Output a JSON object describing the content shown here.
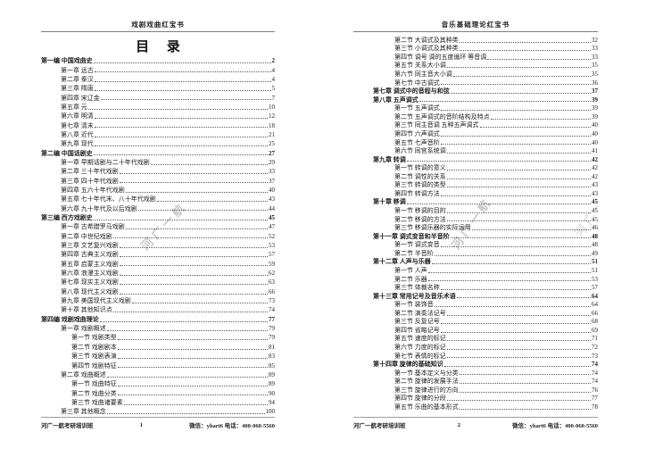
{
  "watermark": {
    "text": "河广一航"
  },
  "colors": {
    "text": "#1c1c1c",
    "rule": "#7d7d7d",
    "watermark": "#9a9a9a",
    "background": "#ffffff"
  },
  "pages": [
    {
      "header_title": "戏剧戏曲红宝书",
      "toc_title": "目 录",
      "footer": {
        "left": "河广一航考研培训班",
        "page_number": "1",
        "right": "微信：yhart6 电话：400-060-5560"
      },
      "toc": [
        {
          "lv": 0,
          "t": "第一编 中国戏曲史",
          "p": "2"
        },
        {
          "lv": 1,
          "t": "第一章 远古",
          "p": "4"
        },
        {
          "lv": 1,
          "t": "第二章 秦汉",
          "p": "4"
        },
        {
          "lv": 1,
          "t": "第三章 隋唐",
          "p": "5"
        },
        {
          "lv": 1,
          "t": "第四章 宋辽金",
          "p": "7"
        },
        {
          "lv": 1,
          "t": "第五章 元",
          "p": "10"
        },
        {
          "lv": 1,
          "t": "第六章 明清",
          "p": "12"
        },
        {
          "lv": 1,
          "t": "第七章 清末",
          "p": "18"
        },
        {
          "lv": 1,
          "t": "第八章 近代",
          "p": "21"
        },
        {
          "lv": 1,
          "t": "第九章 现代",
          "p": "25"
        },
        {
          "lv": 0,
          "t": "第二编 中国话剧史",
          "p": "27"
        },
        {
          "lv": 1,
          "t": "第一章 早期话剧与二十年代戏剧",
          "p": "29"
        },
        {
          "lv": 1,
          "t": "第二章 三十年代戏剧",
          "p": "33"
        },
        {
          "lv": 1,
          "t": "第三章 四十年代戏剧",
          "p": "37"
        },
        {
          "lv": 1,
          "t": "第四章 五六十年代戏剧",
          "p": "40"
        },
        {
          "lv": 1,
          "t": "第五章 七十年代末、八十年代戏剧",
          "p": "43"
        },
        {
          "lv": 1,
          "t": "第六章 九十年代及以后戏剧",
          "p": "44"
        },
        {
          "lv": 0,
          "t": "第三编 西方戏剧史",
          "p": "45"
        },
        {
          "lv": 1,
          "t": "第一章 古希腊罗马戏剧",
          "p": "47"
        },
        {
          "lv": 1,
          "t": "第二章 中世纪戏剧",
          "p": "52"
        },
        {
          "lv": 1,
          "t": "第三章 文艺复兴戏剧",
          "p": "53"
        },
        {
          "lv": 1,
          "t": "第四章 古典主义戏剧",
          "p": "57"
        },
        {
          "lv": 1,
          "t": "第五章 启蒙主义戏剧",
          "p": "59"
        },
        {
          "lv": 1,
          "t": "第六章 浪漫主义戏剧",
          "p": "62"
        },
        {
          "lv": 1,
          "t": "第七章 现实主义戏剧",
          "p": "63"
        },
        {
          "lv": 1,
          "t": "第八章 现代主义戏剧",
          "p": "66"
        },
        {
          "lv": 1,
          "t": "第九章 美国现代主义戏剧",
          "p": "73"
        },
        {
          "lv": 1,
          "t": "第十章 其他知识点",
          "p": "74"
        },
        {
          "lv": 0,
          "t": "第四编 戏剧戏曲理论",
          "p": "77"
        },
        {
          "lv": 1,
          "t": "第一章 戏剧概述",
          "p": "79"
        },
        {
          "lv": 2,
          "t": "第一节 戏剧类型",
          "p": "79"
        },
        {
          "lv": 2,
          "t": "第二节 戏剧剧本",
          "p": "81"
        },
        {
          "lv": 2,
          "t": "第三节 戏剧表演",
          "p": "83"
        },
        {
          "lv": 2,
          "t": "第四节 戏剧特征",
          "p": "85"
        },
        {
          "lv": 1,
          "t": "第二章 戏曲概述",
          "p": "89"
        },
        {
          "lv": 2,
          "t": "第一节 戏曲特征",
          "p": "89"
        },
        {
          "lv": 2,
          "t": "第二节 戏曲分类",
          "p": "90"
        },
        {
          "lv": 2,
          "t": "第三节 戏曲诸要素",
          "p": "94"
        },
        {
          "lv": 1,
          "t": "第三章 其他概念",
          "p": "100"
        }
      ]
    },
    {
      "header_title": "音乐基础理论红宝书",
      "toc_title": "",
      "footer": {
        "left": "河广一航考研培训班",
        "page_number": "2",
        "right": "微信：yhart6 电话：400-060-5560"
      },
      "toc": [
        {
          "lv": 2,
          "t": "第二节 大调式及其种类",
          "p": "32"
        },
        {
          "lv": 2,
          "t": "第三节 小调式及其种类",
          "p": "33"
        },
        {
          "lv": 2,
          "t": "第四节 调号 调的五度循环 等音调",
          "p": "33"
        },
        {
          "lv": 2,
          "t": "第五节 关系大小调",
          "p": "35"
        },
        {
          "lv": 2,
          "t": "第六节 同主音大小调",
          "p": "35"
        },
        {
          "lv": 2,
          "t": "第七节 中古调式",
          "p": "36"
        },
        {
          "lv": 1,
          "t": "第七章 调式中的音程与和弦",
          "p": "37"
        },
        {
          "lv": 1,
          "t": "第八章 五声调式",
          "p": "39"
        },
        {
          "lv": 2,
          "t": "第一节 五声调式",
          "p": "39"
        },
        {
          "lv": 2,
          "t": "第二节 五声调式的音阶结构及特点",
          "p": "39"
        },
        {
          "lv": 2,
          "t": "第三节 同主音调 五种五声调式",
          "p": "40"
        },
        {
          "lv": 2,
          "t": "第四节 六声调式",
          "p": "40"
        },
        {
          "lv": 2,
          "t": "第五节 七声音阶",
          "p": "40"
        },
        {
          "lv": 2,
          "t": "第六节 同宫系统调",
          "p": "41"
        },
        {
          "lv": 1,
          "t": "第九章 转调",
          "p": "42"
        },
        {
          "lv": 2,
          "t": "第一节 转调的意义",
          "p": "42"
        },
        {
          "lv": 2,
          "t": "第二节 调性的关系",
          "p": "42"
        },
        {
          "lv": 2,
          "t": "第三节 转调的类型",
          "p": "43"
        },
        {
          "lv": 2,
          "t": "第四节 转调方法",
          "p": "43"
        },
        {
          "lv": 1,
          "t": "第十章 移调",
          "p": "45"
        },
        {
          "lv": 2,
          "t": "第一节 移调的目的",
          "p": "45"
        },
        {
          "lv": 2,
          "t": "第二节 移调的方法",
          "p": "45"
        },
        {
          "lv": 2,
          "t": "第三节 移调乐器的实际运用",
          "p": "46"
        },
        {
          "lv": 1,
          "t": "第十一章 调式变音和半音阶",
          "p": "48"
        },
        {
          "lv": 2,
          "t": "第一节 调式变音",
          "p": "48"
        },
        {
          "lv": 2,
          "t": "第二节 半音阶",
          "p": "49"
        },
        {
          "lv": 1,
          "t": "第十二章 人声与乐器",
          "p": "51"
        },
        {
          "lv": 2,
          "t": "第一节 人声",
          "p": "51"
        },
        {
          "lv": 2,
          "t": "第二节 乐器",
          "p": "53"
        },
        {
          "lv": 2,
          "t": "第三节 体裁名称",
          "p": "57"
        },
        {
          "lv": 1,
          "t": "第十三章 常用记号及音乐术语",
          "p": "64"
        },
        {
          "lv": 2,
          "t": "第一节 装饰音",
          "p": "64"
        },
        {
          "lv": 2,
          "t": "第二节 演奏法记号",
          "p": "66"
        },
        {
          "lv": 2,
          "t": "第三节 反复记号",
          "p": "68"
        },
        {
          "lv": 2,
          "t": "第四节 省略记号",
          "p": "69"
        },
        {
          "lv": 2,
          "t": "第五节 速度的标记",
          "p": "71"
        },
        {
          "lv": 2,
          "t": "第六节 力度的标记",
          "p": "72"
        },
        {
          "lv": 2,
          "t": "第七节 表情的标记",
          "p": "73"
        },
        {
          "lv": 1,
          "t": "第十四章 旋律的基础知识",
          "p": "74"
        },
        {
          "lv": 2,
          "t": "第一节 基本定义与分类",
          "p": "74"
        },
        {
          "lv": 2,
          "t": "第二节 旋律的发展手法",
          "p": "74"
        },
        {
          "lv": 2,
          "t": "第三节 旋律进行的方向",
          "p": "76"
        },
        {
          "lv": 2,
          "t": "第四节 旋律的分段",
          "p": "77"
        },
        {
          "lv": 2,
          "t": "第五节 乐曲的基本形式",
          "p": "78"
        }
      ]
    }
  ]
}
